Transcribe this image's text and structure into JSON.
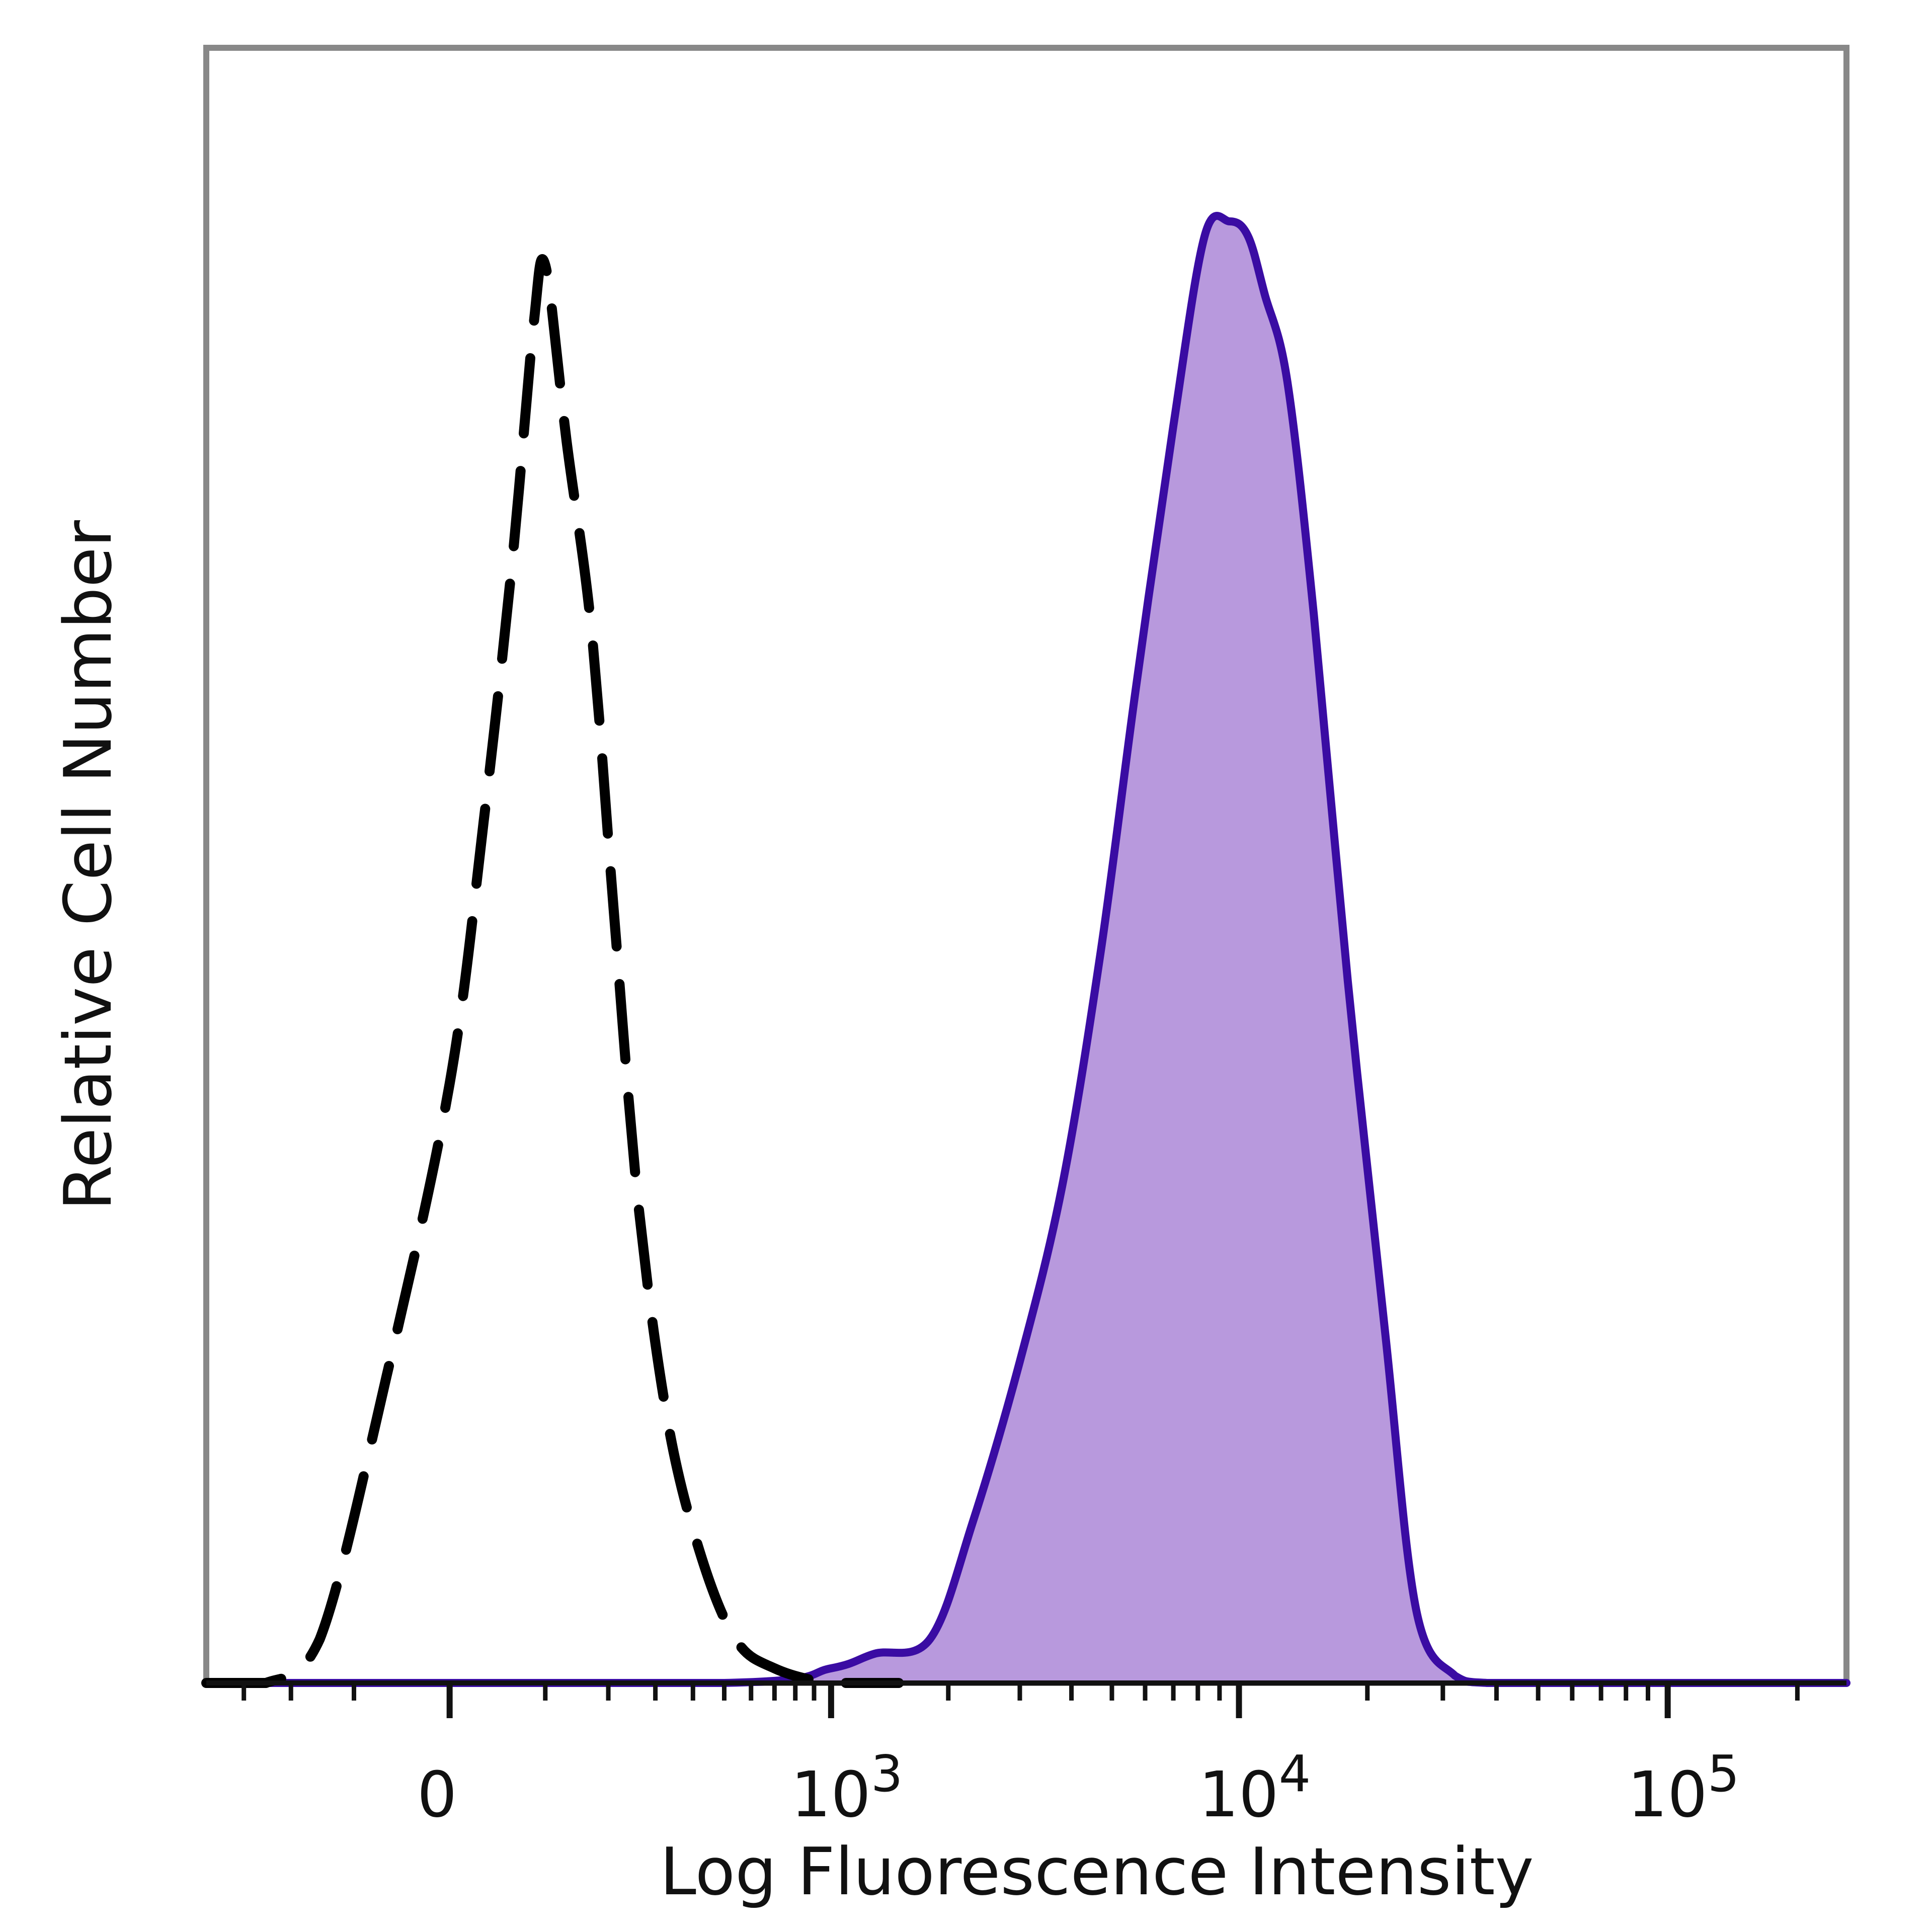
{
  "chart_data": {
    "type": "area",
    "title": "",
    "xlabel": "Log Fluorescence Intensity",
    "ylabel": "Relative Cell Number",
    "x_scale": "biexponential",
    "x_ticks": [
      {
        "value": 0,
        "label": "0"
      },
      {
        "value": 1000,
        "label": "10",
        "exponent": "3"
      },
      {
        "value": 10000,
        "label": "10",
        "exponent": "4"
      },
      {
        "value": 100000,
        "label": "10",
        "exponent": "5"
      }
    ],
    "xlim": [
      -400,
      260000
    ],
    "ylim": [
      0,
      1
    ],
    "grid": false,
    "legend": "none",
    "series": [
      {
        "style": "dashed",
        "color": "#000000",
        "fill": "none",
        "x": [
          -400,
          -250,
          -150,
          -60,
          0,
          30,
          60,
          85,
          100,
          130,
          170,
          210,
          260,
          330,
          420,
          540,
          700,
          1000,
          1500
        ],
        "y": [
          0,
          0,
          0.03,
          0.21,
          0.41,
          0.59,
          0.77,
          0.93,
          0.97,
          0.85,
          0.72,
          0.53,
          0.33,
          0.18,
          0.09,
          0.03,
          0.01,
          0,
          0
        ]
      },
      {
        "style": "solid",
        "color": "#3a0ca3",
        "fill": "#b899dd",
        "x": [
          -400,
          500,
          1000,
          1300,
          1800,
          2300,
          3000,
          3800,
          4700,
          5700,
          7000,
          8300,
          9500,
          10500,
          11500,
          13000,
          15000,
          18000,
          22000,
          26000,
          32000,
          38000,
          60000,
          260000
        ],
        "y": [
          0,
          0,
          0.01,
          0.02,
          0.03,
          0.11,
          0.22,
          0.34,
          0.5,
          0.68,
          0.86,
          0.99,
          1.0,
          0.99,
          0.95,
          0.89,
          0.73,
          0.48,
          0.24,
          0.05,
          0.005,
          0,
          0,
          0
        ]
      }
    ]
  }
}
